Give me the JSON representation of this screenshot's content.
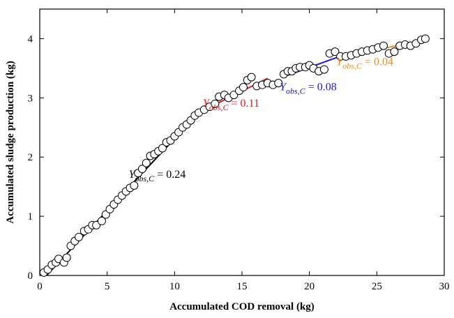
{
  "chart_data": {
    "type": "scatter",
    "xlabel": "Accumulated  COD removal (kg)",
    "ylabel": "Accumulated  sludge production (kg)",
    "xlim": [
      0,
      30
    ],
    "ylim": [
      0,
      4.5
    ],
    "x_ticks": [
      0,
      5,
      10,
      15,
      20,
      25,
      30
    ],
    "y_ticks": [
      0,
      1,
      2,
      3,
      4
    ],
    "grid": false,
    "legend": "none",
    "series": [
      {
        "marker": "open-circle",
        "color": "#000000",
        "points": [
          [
            0.3,
            0.05
          ],
          [
            0.6,
            0.1
          ],
          [
            0.9,
            0.18
          ],
          [
            1.2,
            0.22
          ],
          [
            1.4,
            0.28
          ],
          [
            1.8,
            0.22
          ],
          [
            2.0,
            0.3
          ],
          [
            2.3,
            0.5
          ],
          [
            2.6,
            0.58
          ],
          [
            2.9,
            0.65
          ],
          [
            3.3,
            0.75
          ],
          [
            3.6,
            0.78
          ],
          [
            3.9,
            0.85
          ],
          [
            4.2,
            0.85
          ],
          [
            4.6,
            0.92
          ],
          [
            4.9,
            1.03
          ],
          [
            5.2,
            1.12
          ],
          [
            5.5,
            1.2
          ],
          [
            5.8,
            1.28
          ],
          [
            6.1,
            1.35
          ],
          [
            6.4,
            1.42
          ],
          [
            6.7,
            1.48
          ],
          [
            7.0,
            1.52
          ],
          [
            7.3,
            1.73
          ],
          [
            7.6,
            1.8
          ],
          [
            7.9,
            1.9
          ],
          [
            8.2,
            2.02
          ],
          [
            8.5,
            2.05
          ],
          [
            8.8,
            2.1
          ],
          [
            9.1,
            2.15
          ],
          [
            9.4,
            2.25
          ],
          [
            9.7,
            2.28
          ],
          [
            10.0,
            2.35
          ],
          [
            10.3,
            2.42
          ],
          [
            10.6,
            2.5
          ],
          [
            10.9,
            2.55
          ],
          [
            11.2,
            2.62
          ],
          [
            11.5,
            2.7
          ],
          [
            11.8,
            2.75
          ],
          [
            12.2,
            2.8
          ],
          [
            12.6,
            2.85
          ],
          [
            13.0,
            2.9
          ],
          [
            13.3,
            3.02
          ],
          [
            13.7,
            3.05
          ],
          [
            14.0,
            3.0
          ],
          [
            14.4,
            3.05
          ],
          [
            14.8,
            3.12
          ],
          [
            15.1,
            3.18
          ],
          [
            15.4,
            3.3
          ],
          [
            15.7,
            3.35
          ],
          [
            16.1,
            3.2
          ],
          [
            16.5,
            3.22
          ],
          [
            16.9,
            3.25
          ],
          [
            17.3,
            3.22
          ],
          [
            17.7,
            3.25
          ],
          [
            18.1,
            3.4
          ],
          [
            18.4,
            3.45
          ],
          [
            18.7,
            3.45
          ],
          [
            19.0,
            3.5
          ],
          [
            19.3,
            3.52
          ],
          [
            19.7,
            3.52
          ],
          [
            20.0,
            3.55
          ],
          [
            20.3,
            3.5
          ],
          [
            20.7,
            3.45
          ],
          [
            21.1,
            3.48
          ],
          [
            21.5,
            3.75
          ],
          [
            21.9,
            3.78
          ],
          [
            22.3,
            3.7
          ],
          [
            22.7,
            3.7
          ],
          [
            23.1,
            3.72
          ],
          [
            23.5,
            3.75
          ],
          [
            23.9,
            3.78
          ],
          [
            24.3,
            3.8
          ],
          [
            24.7,
            3.82
          ],
          [
            25.1,
            3.85
          ],
          [
            25.5,
            3.88
          ],
          [
            25.9,
            3.75
          ],
          [
            26.3,
            3.78
          ],
          [
            26.7,
            3.88
          ],
          [
            27.1,
            3.9
          ],
          [
            27.5,
            3.88
          ],
          [
            27.9,
            3.92
          ],
          [
            28.3,
            3.98
          ],
          [
            28.6,
            4.0
          ]
        ]
      }
    ],
    "fit_lines": [
      {
        "x": [
          0.5,
          11.8
        ],
        "y": [
          0.0,
          2.75
        ],
        "color": "#000000",
        "label_symbol": "Y",
        "label_sub": "obs,C",
        "label_value": " = 0.24",
        "label_at": [
          6.6,
          1.65
        ]
      },
      {
        "x": [
          11.8,
          16.9
        ],
        "y": [
          2.75,
          3.33
        ],
        "color": "#e8151c",
        "label_symbol": "Y",
        "label_sub": "obs,C",
        "label_value": " = 0.11",
        "label_at": [
          12.1,
          2.85
        ]
      },
      {
        "x": [
          18.0,
          22.5
        ],
        "y": [
          3.35,
          3.72
        ],
        "color": "#1a1ae6",
        "label_symbol": "Y",
        "label_sub": "obs,C",
        "label_value": " = 0.08",
        "label_at": [
          17.8,
          3.13
        ]
      },
      {
        "x": [
          22.5,
          28.5
        ],
        "y": [
          3.72,
          3.96
        ],
        "color": "#f08a1c",
        "label_symbol": "Y",
        "label_sub": "obs,C",
        "label_value": " = 0.04",
        "label_at": [
          22.0,
          3.55
        ]
      }
    ]
  }
}
